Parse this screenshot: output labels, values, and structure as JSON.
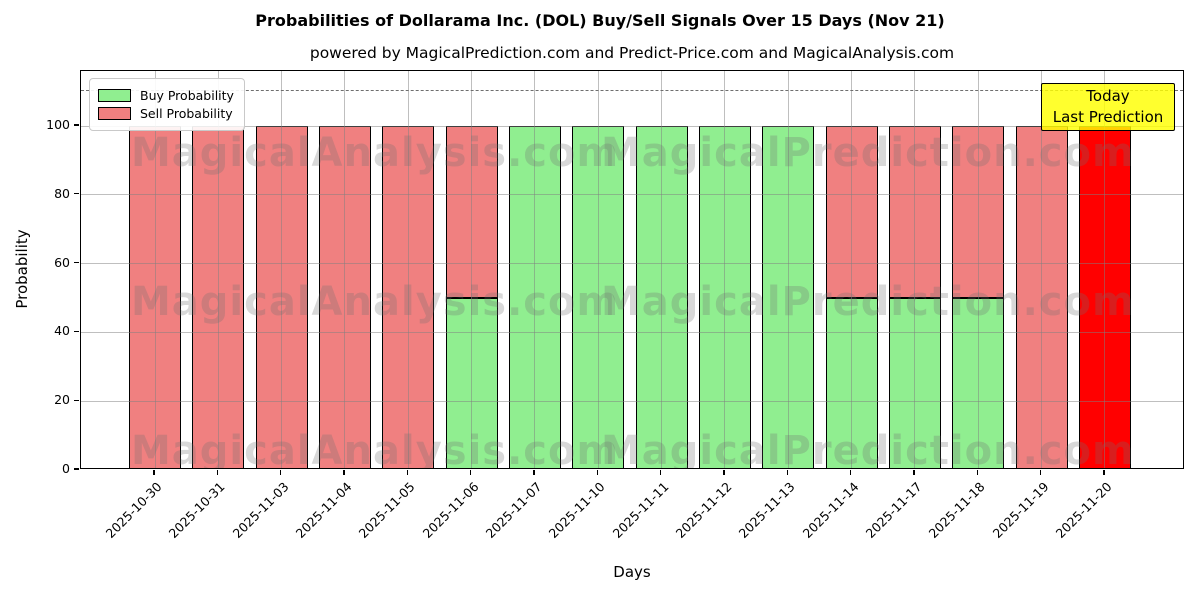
{
  "chart_data": {
    "type": "bar",
    "stacked": true,
    "title": "Probabilities of Dollarama Inc. (DOL) Buy/Sell Signals Over 15 Days (Nov 21)",
    "subtitle": "powered by MagicalPrediction.com and Predict-Price.com and MagicalAnalysis.com",
    "xlabel": "Days",
    "ylabel": "Probability",
    "categories": [
      "2025-10-30",
      "2025-10-31",
      "2025-11-03",
      "2025-11-04",
      "2025-11-05",
      "2025-11-06",
      "2025-11-07",
      "2025-11-10",
      "2025-11-11",
      "2025-11-12",
      "2025-11-13",
      "2025-11-14",
      "2025-11-17",
      "2025-11-18",
      "2025-11-19",
      "2025-11-20"
    ],
    "series": [
      {
        "name": "Buy Probability",
        "color": "#90ee90",
        "values": [
          0,
          0,
          0,
          0,
          0,
          50,
          100,
          100,
          100,
          100,
          100,
          50,
          50,
          50,
          0,
          0
        ]
      },
      {
        "name": "Sell Probability",
        "color": "#f08080",
        "values": [
          100,
          100,
          100,
          100,
          100,
          50,
          0,
          0,
          0,
          0,
          0,
          50,
          50,
          50,
          100,
          100
        ]
      }
    ],
    "today": {
      "index": 15,
      "sell_color": "#ff0000"
    },
    "ylim": [
      0,
      116
    ],
    "yticks": [
      0,
      20,
      40,
      60,
      80,
      100
    ],
    "dashed_line_y": 110.5,
    "grid": true,
    "grid_color": "#808080",
    "legend_position": "upper-left",
    "annotation": {
      "lines": [
        "Today",
        "Last Prediction"
      ],
      "bg": "#ffff00",
      "border": "#000000"
    },
    "watermarks": [
      "MagicalAnalysis.com",
      "MagicalPrediction.com"
    ]
  }
}
